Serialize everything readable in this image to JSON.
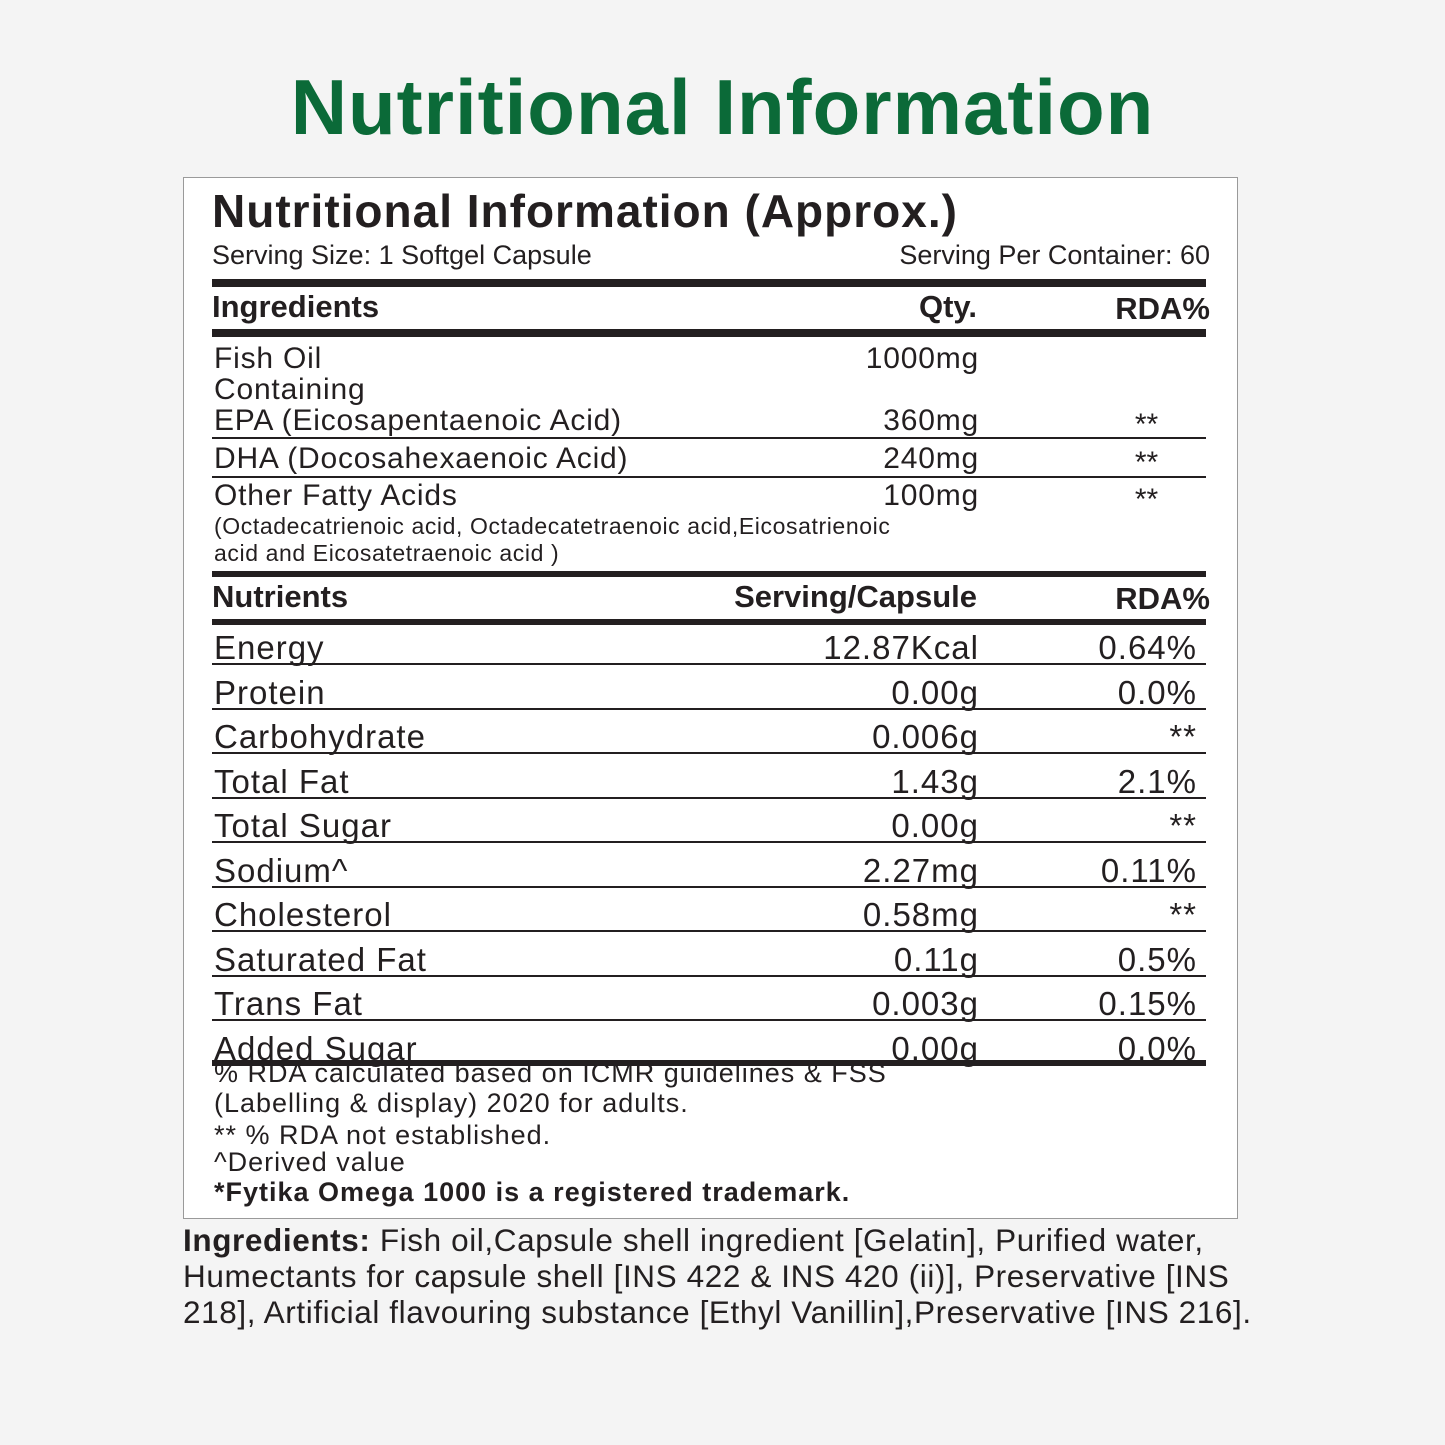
{
  "title": "Nutritional Information",
  "panel": {
    "heading": "Nutritional Information (Approx.)",
    "serving_size": "Serving Size: 1 Softgel Capsule",
    "servings_per_container": "Serving Per Container: 60",
    "ingredients_header": {
      "name": "Ingredients",
      "qty": "Qty.",
      "rda": "RDA%"
    },
    "ingredients": [
      {
        "name": "Fish Oil",
        "qty": "1000mg",
        "rda": ""
      },
      {
        "name": "Containing",
        "qty": "",
        "rda": ""
      },
      {
        "name": "EPA (Eicosapentaenoic Acid)",
        "qty": "360mg",
        "rda": "**"
      },
      {
        "name": "DHA (Docosahexaenoic Acid)",
        "qty": "240mg",
        "rda": "**"
      },
      {
        "name": "Other Fatty Acids",
        "qty": "100mg",
        "rda": "**"
      }
    ],
    "other_fatty_acids_note": [
      "(Octadecatrienoic acid, Octadecatetraenoic acid,Eicosatrienoic",
      "acid and Eicosatetraenoic acid )"
    ],
    "nutrients_header": {
      "name": "Nutrients",
      "qty": "Serving/Capsule",
      "rda": "RDA%"
    },
    "nutrients": [
      {
        "name": "Energy",
        "qty": "12.87Kcal",
        "rda": "0.64%"
      },
      {
        "name": "Protein",
        "qty": "0.00g",
        "rda": "0.0%"
      },
      {
        "name": "Carbohydrate",
        "qty": "0.006g",
        "rda": "**"
      },
      {
        "name": "Total Fat",
        "qty": "1.43g",
        "rda": "2.1%"
      },
      {
        "name": "Total Sugar",
        "qty": "0.00g",
        "rda": "**"
      },
      {
        "name": "Sodium^",
        "qty": "2.27mg",
        "rda": "0.11%"
      },
      {
        "name": "Cholesterol",
        "qty": "0.58mg",
        "rda": "**"
      },
      {
        "name": "Saturated Fat",
        "qty": "0.11g",
        "rda": "0.5%"
      },
      {
        "name": "Trans Fat",
        "qty": "0.003g",
        "rda": "0.15%"
      },
      {
        "name": "Added Sugar",
        "qty": "0.00g",
        "rda": "0.0%"
      }
    ],
    "footnotes": [
      "% RDA calculated based on ICMR guidelines & FSS",
      "(Labelling & display)  2020 for adults.",
      "** % RDA not established.",
      "^Derived value",
      "*Fytika Omega 1000 is a registered trademark."
    ]
  },
  "ingredients_statement": {
    "label": "Ingredients:",
    "text": " Fish oil,Capsule shell ingredient [Gelatin], Purified water, Humectants for capsule shell [INS 422 & INS 420 (ii)], Preservative [INS 218], Artificial flavouring substance [Ethyl Vanillin],Preservative [INS 216]."
  },
  "colors": {
    "title_green": "#0b6a38",
    "text": "#231f20",
    "background": "#f4f4f4"
  }
}
